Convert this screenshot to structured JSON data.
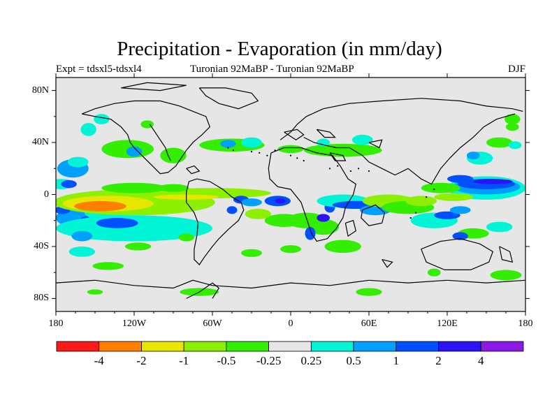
{
  "title": "Precipitation - Evaporation (in mm/day)",
  "subtitle_left": "Expt = tdsxl5-tdsxl4",
  "subtitle_center": "Turonian  92MaBP - Turonian  92MaBP",
  "subtitle_right": "DJF",
  "lat_labels": [
    "80N",
    "40N",
    "0",
    "40S",
    "80S"
  ],
  "lon_labels": [
    "180",
    "120W",
    "60W",
    "0",
    "60E",
    "120E",
    "180"
  ],
  "colorbar": {
    "colors": [
      "#ff1a1a",
      "#ff8000",
      "#e6e600",
      "#8cf000",
      "#33ee00",
      "#e6e6e6",
      "#00f5d6",
      "#00a0ff",
      "#0050ff",
      "#2a14f5",
      "#8c1ae6"
    ],
    "labels": [
      "-4",
      "-2",
      "-1",
      "-0.5",
      "-0.25",
      "0.25",
      "0.5",
      "1",
      "2",
      "4"
    ]
  },
  "chart_data": {
    "type": "heatmap",
    "title": "Precipitation - Evaporation (in mm/day)",
    "season": "DJF",
    "x_range": [
      -180,
      180
    ],
    "y_range": [
      -90,
      90
    ],
    "levels": [
      -4,
      -2,
      -1,
      -0.5,
      -0.25,
      0.25,
      0.5,
      1,
      2,
      4
    ]
  }
}
